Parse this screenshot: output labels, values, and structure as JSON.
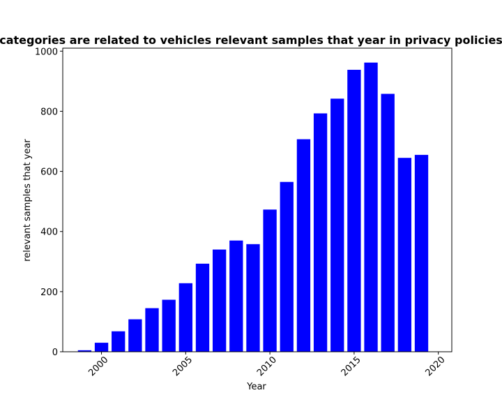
{
  "chart_data": {
    "type": "bar",
    "title": "categories are related to vehicles relevant samples that year in privacy policies",
    "xlabel": "Year",
    "ylabel": "relevant samples that year",
    "x": [
      1999,
      2000,
      2001,
      2002,
      2003,
      2004,
      2005,
      2006,
      2007,
      2008,
      2009,
      2010,
      2011,
      2012,
      2013,
      2014,
      2015,
      2016,
      2017,
      2018,
      2019
    ],
    "values": [
      5,
      30,
      68,
      108,
      145,
      173,
      228,
      293,
      340,
      370,
      358,
      473,
      565,
      707,
      793,
      842,
      938,
      962,
      858,
      645,
      655
    ],
    "xlim": [
      1997.7,
      2020.8
    ],
    "ylim": [
      0,
      1010
    ],
    "xticks": [
      2000,
      2005,
      2010,
      2015,
      2020
    ],
    "yticks": [
      0,
      200,
      400,
      600,
      800,
      1000
    ],
    "bar_color": "#0000ff",
    "grid": false,
    "legend": "none"
  }
}
